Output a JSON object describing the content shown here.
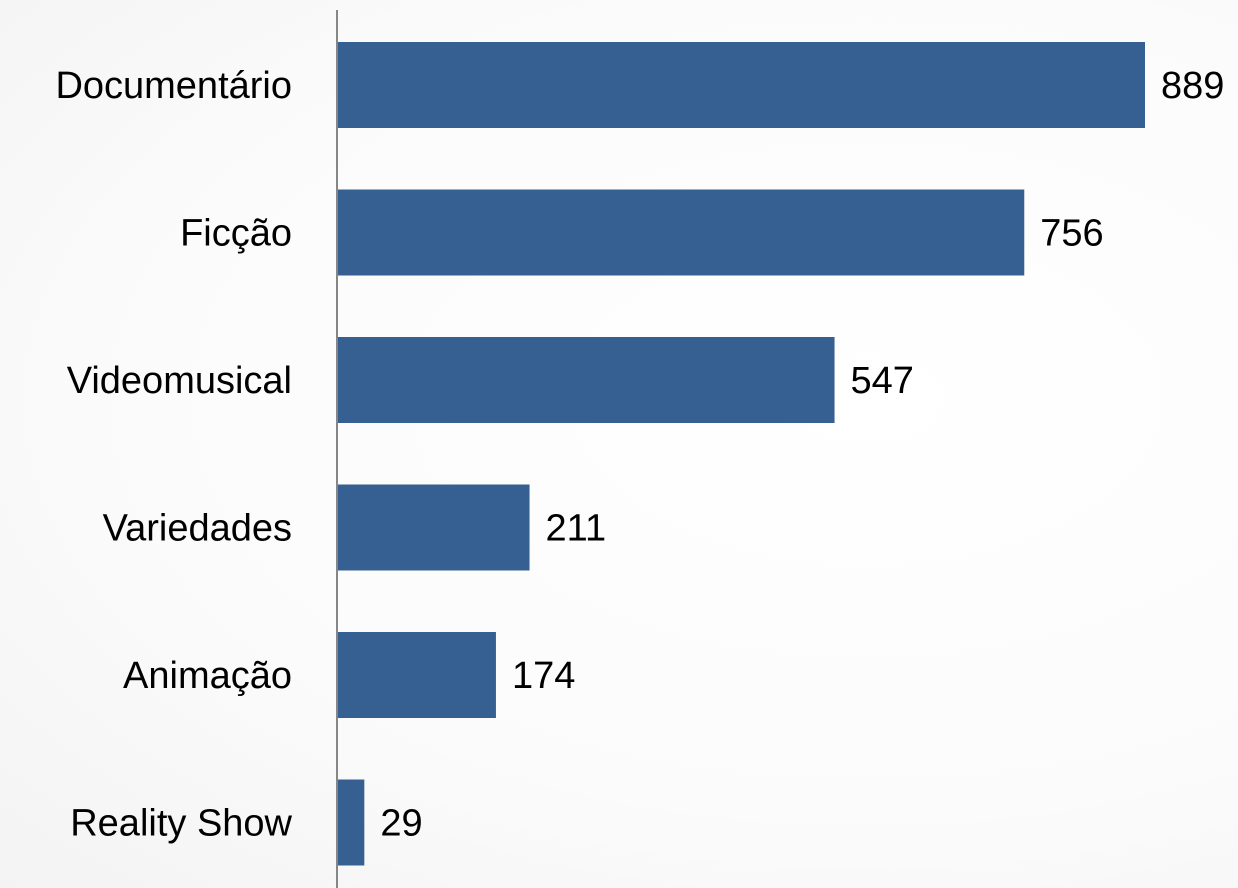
{
  "chart_data": {
    "type": "bar",
    "orientation": "horizontal",
    "title": "",
    "xlabel": "",
    "ylabel": "",
    "categories": [
      "Documentário",
      "Ficção",
      "Videomusical",
      "Variedades",
      "Animação",
      "Reality Show"
    ],
    "values": [
      889,
      756,
      547,
      211,
      174,
      29
    ],
    "data_labels": [
      "889",
      "756",
      "547",
      "211",
      "174",
      "29"
    ],
    "xlim": [
      0,
      889
    ],
    "grid": false,
    "legend": "none",
    "bar_color": "#376092",
    "axis_color": "#868686"
  }
}
